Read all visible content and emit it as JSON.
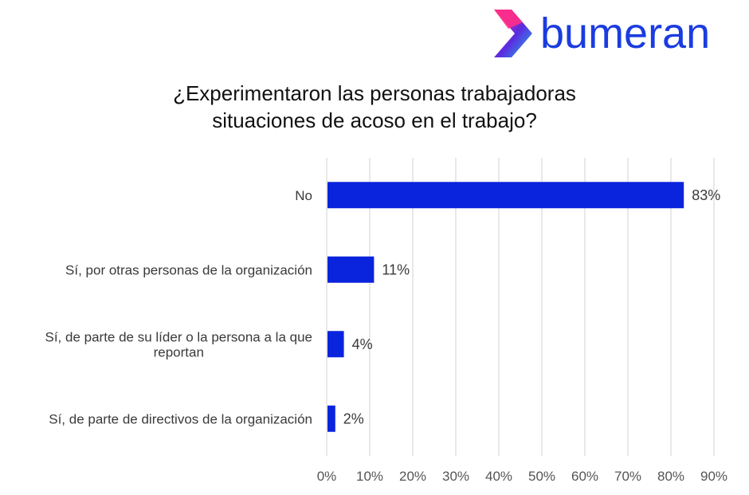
{
  "brand": {
    "name": "bumeran",
    "mark_icon": "boomerang-chevron-icon",
    "colors": {
      "text": "#1a3ce0",
      "gradient_start": "#ff2d8a",
      "gradient_mid": "#5b2be0",
      "gradient_end": "#1fb8e8"
    }
  },
  "chart_data": {
    "type": "bar",
    "orientation": "horizontal",
    "title_lines": [
      "¿Experimentaron las personas trabajadoras",
      "situaciones de acoso en el trabajo?"
    ],
    "categories": [
      [
        "No"
      ],
      [
        "Sí, por otras personas de la organización"
      ],
      [
        "Sí, de parte de su líder o la persona a la que",
        "reportan"
      ],
      [
        "Sí, de parte de directivos de la organización"
      ]
    ],
    "values": [
      83,
      11,
      4,
      2
    ],
    "value_labels": [
      "83%",
      "11%",
      "4%",
      "2%"
    ],
    "xlim": [
      0,
      90
    ],
    "xticks": [
      0,
      10,
      20,
      30,
      40,
      50,
      60,
      70,
      80,
      90
    ],
    "xtick_labels": [
      "0%",
      "10%",
      "20%",
      "30%",
      "40%",
      "50%",
      "60%",
      "70%",
      "80%",
      "90%"
    ],
    "grid": "vertical",
    "legend": "none",
    "bar_color": "#0a24dd"
  }
}
